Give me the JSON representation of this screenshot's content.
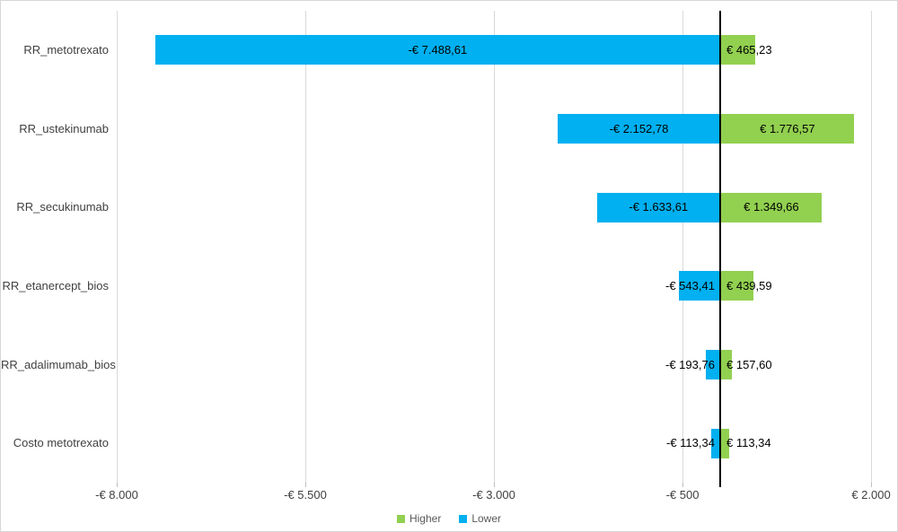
{
  "chart_data": {
    "type": "bar",
    "subtype": "tornado",
    "orientation": "horizontal",
    "title": "",
    "xlabel": "",
    "ylabel": "",
    "categories": [
      "RR_metotrexato",
      "RR_ustekinumab",
      "RR_secukinumab",
      "RR_etanercept_bios",
      "RR_adalimumab_bios",
      "Costo metotrexato"
    ],
    "series": [
      {
        "name": "Higher",
        "color": "#92D050",
        "values": [
          465.23,
          1776.57,
          1349.66,
          439.59,
          157.6,
          113.34
        ],
        "labels": [
          "€ 465,23",
          "€ 1.776,57",
          "€ 1.349,66",
          "€ 439,59",
          "€ 157,60",
          "€ 113,34"
        ]
      },
      {
        "name": "Lower",
        "color": "#00B0F0",
        "values": [
          -7488.61,
          -2152.78,
          -1633.61,
          -543.41,
          -193.76,
          -113.34
        ],
        "labels": [
          "-€ 7.488,61",
          "-€ 2.152,78",
          "-€ 1.633,61",
          "-€ 543,41",
          "-€ 193,76",
          "-€ 113,34"
        ]
      }
    ],
    "x_axis": {
      "ticks": [
        -8000,
        -5500,
        -3000,
        -500,
        2000
      ],
      "tick_labels": [
        "-€ 8.000",
        "-€ 5.500",
        "-€ 3.000",
        "-€ 500",
        "€ 2.000"
      ],
      "baseline_value": 0,
      "grid": true
    },
    "legend": {
      "position": "bottom",
      "entries": [
        {
          "label": "Higher",
          "color": "#92D050"
        },
        {
          "label": "Lower",
          "color": "#00B0F0"
        }
      ]
    },
    "style_colors": {
      "gridline": "#d9d9d9",
      "axis_baseline": "#000000",
      "tick_text": "#404040",
      "legend_text": "#595959",
      "background": "#ffffff"
    }
  }
}
